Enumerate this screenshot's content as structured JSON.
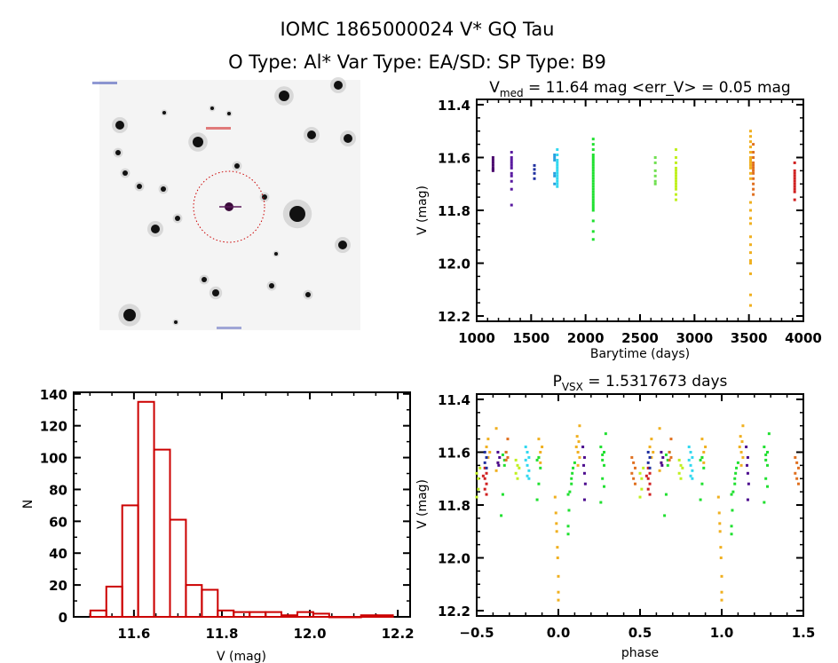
{
  "header": {
    "title_line1": "IOMC 1865000024    V* GQ Tau",
    "title_line2": "O Type: Al*  Var Type: EA/SD:  SP Type: B9"
  },
  "sky_image": {
    "content": "sky field image with circled target star",
    "colors": {
      "background": "#f4f4f4",
      "stars": "#111111",
      "marker": "#cc0000",
      "cross": "#5a1a5a"
    }
  },
  "chart_data": [
    {
      "id": "light_curve",
      "type": "scatter",
      "title_main": "V",
      "title_sub": "med",
      "title_rest": " = 11.64 mag <err_V> = 0.05 mag",
      "xlabel": "Barytime (days)",
      "ylabel": "V (mag)",
      "xlim": [
        1000,
        4000
      ],
      "ylim": [
        11.38,
        12.22
      ],
      "y_inverted": true,
      "xticks": [
        1000,
        1500,
        2000,
        2500,
        3000,
        3500,
        4000
      ],
      "xtick_labels": [
        "1000",
        "1500",
        "2000",
        "2500",
        "3000",
        "3500",
        "4000"
      ],
      "yticks": [
        11.4,
        11.6,
        11.8,
        12.0,
        12.2
      ],
      "ytick_labels": [
        "11.4",
        "11.6",
        "11.8",
        "12.0",
        "12.2"
      ],
      "grid": false,
      "series": [
        {
          "color": "#4b0a6e",
          "t": 1150,
          "mags": [
            11.6,
            11.61,
            11.62,
            11.63,
            11.64,
            11.645,
            11.65
          ]
        },
        {
          "color": "#5a1aa0",
          "t": 1320,
          "mags": [
            11.58,
            11.6,
            11.61,
            11.62,
            11.63,
            11.64,
            11.66,
            11.67,
            11.69,
            11.72,
            11.78
          ]
        },
        {
          "color": "#2030a0",
          "t": 1530,
          "mags": [
            11.63,
            11.645,
            11.66,
            11.68
          ]
        },
        {
          "color": "#2aa0e0",
          "t": 1715,
          "mags": [
            11.59,
            11.6,
            11.61,
            11.66,
            11.67,
            11.7
          ]
        },
        {
          "color": "#30d8f0",
          "t": 1740,
          "mags": [
            11.57,
            11.59,
            11.61,
            11.62,
            11.63,
            11.64,
            11.65,
            11.66,
            11.67,
            11.68,
            11.69,
            11.7,
            11.71
          ]
        },
        {
          "color": "#20e030",
          "t": 2070,
          "mags": [
            11.53,
            11.55,
            11.57,
            11.59,
            11.6,
            11.61,
            11.62,
            11.63,
            11.64,
            11.65,
            11.66,
            11.67,
            11.68,
            11.69,
            11.7,
            11.71,
            11.72,
            11.73,
            11.74,
            11.75,
            11.76,
            11.77,
            11.78,
            11.79,
            11.8,
            11.84,
            11.88,
            11.91
          ]
        },
        {
          "color": "#70e050",
          "t": 2640,
          "mags": [
            11.6,
            11.62,
            11.65,
            11.67,
            11.69,
            11.7
          ]
        },
        {
          "color": "#c0f020",
          "t": 2830,
          "mags": [
            11.57,
            11.6,
            11.62,
            11.64,
            11.65,
            11.66,
            11.67,
            11.68,
            11.69,
            11.7,
            11.71,
            11.72,
            11.74,
            11.76
          ]
        },
        {
          "color": "#f0b020",
          "t": 3515,
          "mags": [
            11.5,
            11.52,
            11.54,
            11.56,
            11.58,
            11.6,
            11.61,
            11.62,
            11.63,
            11.64,
            11.66,
            11.68,
            11.77,
            11.8,
            11.83,
            11.85,
            11.9,
            11.93,
            11.96,
            11.99,
            12.0,
            12.04,
            12.12,
            12.16
          ]
        },
        {
          "color": "#e07020",
          "t": 3540,
          "mags": [
            11.55,
            11.58,
            11.6,
            11.62,
            11.63,
            11.64,
            11.65,
            11.66,
            11.68,
            11.7,
            11.72,
            11.74
          ]
        },
        {
          "color": "#d02020",
          "t": 3920,
          "mags": [
            11.62,
            11.65,
            11.66,
            11.67,
            11.68,
            11.69,
            11.7,
            11.71,
            11.72,
            11.73,
            11.76
          ]
        }
      ]
    },
    {
      "id": "histogram",
      "type": "bar",
      "xlabel": "V (mag)",
      "ylabel": "N",
      "xlim": [
        11.463,
        12.228
      ],
      "ylim": [
        0,
        141
      ],
      "xticks": [
        11.6,
        11.8,
        12.0,
        12.2
      ],
      "xtick_labels": [
        "11.6",
        "11.8",
        "12.0",
        "12.2"
      ],
      "yticks": [
        0,
        20,
        40,
        60,
        80,
        100,
        120,
        140
      ],
      "ytick_labels": [
        "0",
        "20",
        "40",
        "60",
        "80",
        "100",
        "120",
        "140"
      ],
      "bar_color": "#cc0000",
      "bin_start": 11.501,
      "bin_width": 0.0362,
      "values": [
        4,
        19,
        70,
        135,
        105,
        61,
        20,
        17,
        4,
        3,
        3,
        3,
        1,
        3,
        2,
        0,
        0,
        1,
        1
      ],
      "grid": false
    },
    {
      "id": "phased_curve",
      "type": "scatter",
      "title_main": "P",
      "title_sub": "VSX",
      "title_rest": " = 1.5317673 days",
      "xlabel": "phase",
      "ylabel": "V (mag)",
      "xlim": [
        -0.5,
        1.5
      ],
      "ylim": [
        11.38,
        12.22
      ],
      "y_inverted": true,
      "period_days": 1.5317673,
      "phase_repeats": true,
      "xticks": [
        -0.5,
        0.0,
        0.5,
        1.0,
        1.5
      ],
      "xtick_labels": [
        "-0.5",
        "0.0",
        "0.5",
        "1.0",
        "1.5"
      ],
      "yticks": [
        11.4,
        11.6,
        11.8,
        12.0,
        12.2
      ],
      "ytick_labels": [
        "11.4",
        "11.6",
        "11.8",
        "12.0",
        "12.2"
      ],
      "grid": false,
      "series": [
        {
          "color": "#f0b020",
          "points": [
            [
              -0.02,
              11.77
            ],
            [
              -0.015,
              11.83
            ],
            [
              -0.012,
              11.87
            ],
            [
              -0.01,
              11.9
            ],
            [
              -0.006,
              11.96
            ],
            [
              -0.004,
              12.0
            ],
            [
              0.0,
              12.07
            ],
            [
              0.0,
              12.13
            ],
            [
              0.0,
              12.16
            ],
            [
              0.11,
              11.58
            ],
            [
              0.12,
              11.6
            ],
            [
              0.125,
              11.56
            ],
            [
              0.13,
              11.62
            ],
            [
              0.12,
              11.65
            ],
            [
              0.13,
              11.5
            ],
            [
              0.115,
              11.54
            ],
            [
              -0.43,
              11.55
            ],
            [
              -0.42,
              11.6
            ],
            [
              -0.43,
              11.62
            ],
            [
              -0.44,
              11.58
            ],
            [
              -0.38,
              11.51
            ],
            [
              -0.37,
              11.64
            ],
            [
              -0.38,
              11.67
            ],
            [
              -0.12,
              11.55
            ],
            [
              -0.11,
              11.6
            ],
            [
              -0.12,
              11.62
            ],
            [
              -0.1,
              11.58
            ],
            [
              -0.11,
              11.64
            ]
          ]
        },
        {
          "color": "#20e030",
          "points": [
            [
              0.06,
              11.76
            ],
            [
              0.065,
              11.82
            ],
            [
              0.06,
              11.88
            ],
            [
              0.06,
              11.91
            ],
            [
              0.07,
              11.75
            ],
            [
              0.08,
              11.7
            ],
            [
              0.085,
              11.68
            ],
            [
              0.09,
              11.66
            ],
            [
              0.1,
              11.64
            ],
            [
              0.08,
              11.72
            ],
            [
              0.26,
              11.58
            ],
            [
              0.27,
              11.61
            ],
            [
              0.28,
              11.6
            ],
            [
              0.27,
              11.63
            ],
            [
              0.28,
              11.65
            ],
            [
              0.27,
              11.7
            ],
            [
              0.28,
              11.73
            ],
            [
              0.26,
              11.79
            ],
            [
              0.29,
              11.53
            ],
            [
              -0.34,
              11.61
            ],
            [
              -0.33,
              11.63
            ],
            [
              -0.32,
              11.6
            ],
            [
              -0.34,
              11.76
            ],
            [
              -0.35,
              11.84
            ],
            [
              -0.33,
              11.65
            ],
            [
              -0.12,
              11.62
            ],
            [
              -0.13,
              11.63
            ],
            [
              -0.11,
              11.66
            ],
            [
              -0.12,
              11.72
            ],
            [
              -0.13,
              11.78
            ]
          ]
        },
        {
          "color": "#4b0a8e",
          "points": [
            [
              0.15,
              11.58
            ],
            [
              0.16,
              11.62
            ],
            [
              0.155,
              11.65
            ],
            [
              0.16,
              11.68
            ],
            [
              0.165,
              11.72
            ],
            [
              0.16,
              11.78
            ],
            [
              -0.37,
              11.6
            ],
            [
              -0.36,
              11.62
            ],
            [
              -0.37,
              11.64
            ],
            [
              -0.365,
              11.65
            ]
          ]
        },
        {
          "color": "#30d8f0",
          "points": [
            [
              -0.2,
              11.58
            ],
            [
              -0.19,
              11.6
            ],
            [
              -0.18,
              11.62
            ],
            [
              -0.2,
              11.63
            ],
            [
              -0.19,
              11.65
            ],
            [
              -0.18,
              11.67
            ],
            [
              -0.19,
              11.69
            ],
            [
              -0.18,
              11.7
            ]
          ]
        },
        {
          "color": "#c0f020",
          "points": [
            [
              -0.5,
              11.68
            ],
            [
              -0.49,
              11.7
            ],
            [
              -0.48,
              11.66
            ],
            [
              -0.49,
              11.74
            ],
            [
              -0.5,
              11.77
            ],
            [
              -0.26,
              11.63
            ],
            [
              -0.25,
              11.65
            ],
            [
              -0.24,
              11.66
            ],
            [
              -0.26,
              11.68
            ],
            [
              -0.25,
              11.7
            ]
          ]
        },
        {
          "color": "#d02020",
          "points": [
            [
              -0.45,
              11.66
            ],
            [
              -0.44,
              11.68
            ],
            [
              -0.45,
              11.7
            ],
            [
              -0.44,
              11.72
            ],
            [
              -0.45,
              11.74
            ],
            [
              -0.44,
              11.76
            ],
            [
              -0.46,
              11.69
            ]
          ]
        },
        {
          "color": "#2030a0",
          "points": [
            [
              -0.45,
              11.6
            ],
            [
              -0.44,
              11.62
            ],
            [
              -0.45,
              11.64
            ],
            [
              -0.44,
              11.66
            ]
          ]
        },
        {
          "color": "#e07020",
          "points": [
            [
              0.45,
              11.62
            ],
            [
              0.46,
              11.64
            ],
            [
              0.47,
              11.66
            ],
            [
              0.45,
              11.68
            ],
            [
              0.46,
              11.7
            ],
            [
              0.47,
              11.72
            ],
            [
              -0.31,
              11.55
            ],
            [
              -0.32,
              11.6
            ],
            [
              -0.31,
              11.62
            ],
            [
              -0.32,
              11.63
            ]
          ]
        }
      ]
    }
  ]
}
